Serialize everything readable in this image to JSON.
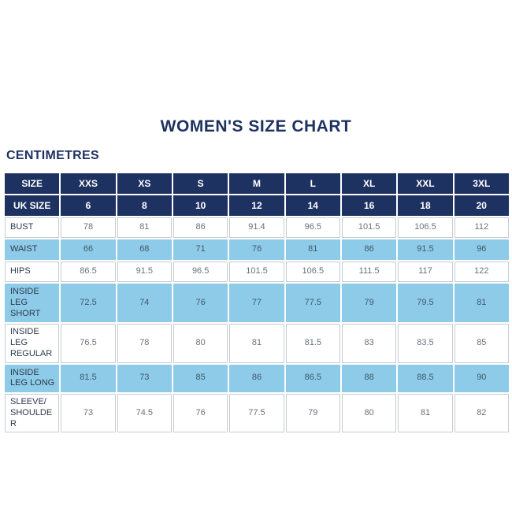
{
  "page": {
    "title": "WOMEN'S SIZE CHART",
    "unit_heading": "CENTIMETRES"
  },
  "colors": {
    "navy_header": "#1e3262",
    "light_blue_row": "#8ecbe8",
    "white_row": "#ffffff",
    "grid_border": "#c7ccd1",
    "title_text": "#1e3262",
    "value_text": "#68727c"
  },
  "chart_data": {
    "type": "table",
    "title": "WOMEN'S SIZE CHART",
    "unit_label": "CENTIMETRES",
    "columns": [
      "SIZE",
      "XXS",
      "XS",
      "S",
      "M",
      "L",
      "XL",
      "XXL",
      "3XL"
    ],
    "uk_size_row": {
      "label": "UK SIZE",
      "values": [
        "6",
        "8",
        "10",
        "12",
        "14",
        "16",
        "18",
        "20"
      ]
    },
    "rows": [
      {
        "label": "BUST",
        "values": [
          "78",
          "81",
          "86",
          "91.4",
          "96.5",
          "101.5",
          "106.5",
          "112"
        ]
      },
      {
        "label": "WAIST",
        "values": [
          "66",
          "68",
          "71",
          "76",
          "81",
          "86",
          "91.5",
          "96"
        ]
      },
      {
        "label": "HIPS",
        "values": [
          "86.5",
          "91.5",
          "96.5",
          "101.5",
          "106.5",
          "111.5",
          "117",
          "122"
        ]
      },
      {
        "label": "INSIDE LEG SHORT",
        "values": [
          "72.5",
          "74",
          "76",
          "77",
          "77.5",
          "79",
          "79.5",
          "81"
        ]
      },
      {
        "label": "INSIDE LEG REGULAR",
        "values": [
          "76.5",
          "78",
          "80",
          "81",
          "81.5",
          "83",
          "83.5",
          "85"
        ]
      },
      {
        "label": "INSIDE LEG LONG",
        "values": [
          "81.5",
          "73",
          "85",
          "86",
          "86.5",
          "88",
          "88.5",
          "90"
        ]
      },
      {
        "label": "SLEEVE/ SHOULDER",
        "values": [
          "73",
          "74.5",
          "76",
          "77.5",
          "79",
          "80",
          "81",
          "82"
        ]
      }
    ]
  }
}
